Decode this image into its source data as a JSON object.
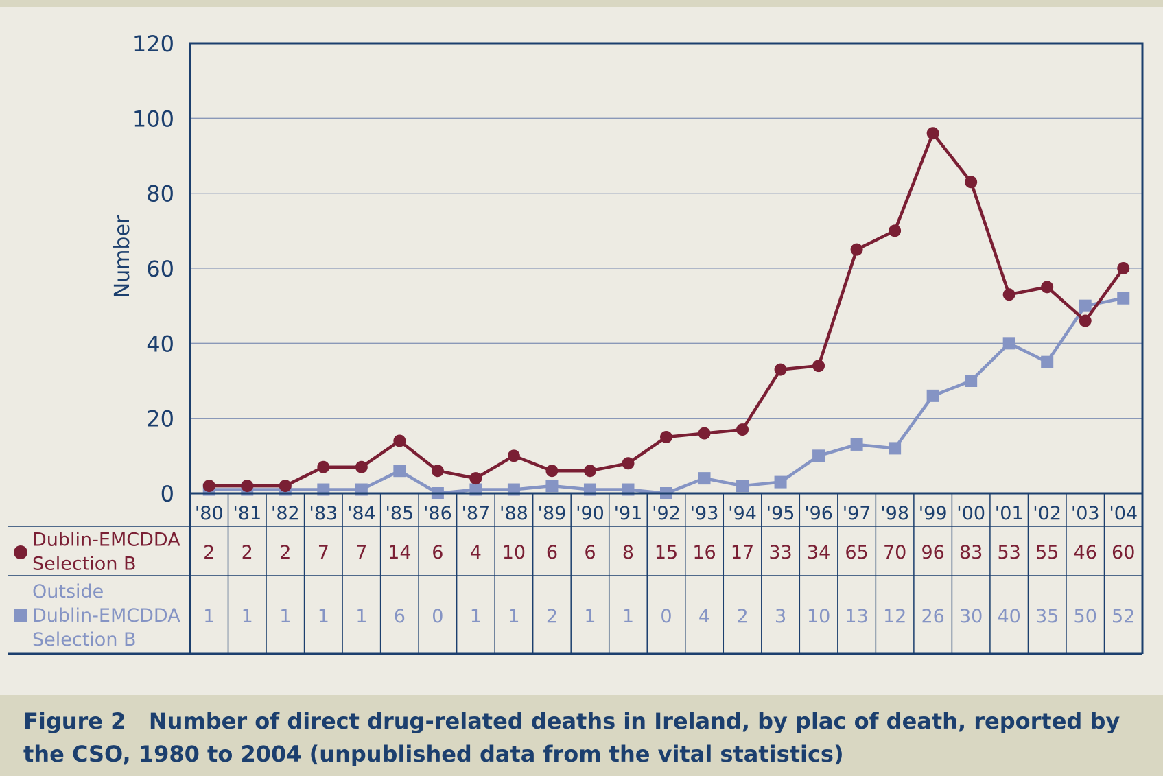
{
  "figure": {
    "label": "Figure 2",
    "caption": "Number of direct drug-related deaths in Ireland, by plac of death, reported by the CSO, 1980 to 2004 (unpublished data from the vital statistics)"
  },
  "colors": {
    "background": "#edebe3",
    "caption_band": "#d9d7c2",
    "axis_text": "#1c3f6e",
    "frame": "#1c3f6e",
    "gridline": "#8a98b8",
    "dublin": "#7a1f34",
    "outside": "#8594c4"
  },
  "chart_data": {
    "type": "line",
    "ylabel": "Number",
    "ylim": [
      0,
      120
    ],
    "yticks": [
      0,
      20,
      40,
      60,
      80,
      100,
      120
    ],
    "grid": true,
    "categories": [
      "'80",
      "'81",
      "'82",
      "'83",
      "'84",
      "'85",
      "'86",
      "'87",
      "'88",
      "'89",
      "'90",
      "'91",
      "'92",
      "'93",
      "'94",
      "'95",
      "'96",
      "'97",
      "'98",
      "'99",
      "'00",
      "'01",
      "'02",
      "'03",
      "'04"
    ],
    "series": [
      {
        "name": "Dublin-EMCDDA Selection B",
        "name_lines": [
          "Dublin-EMCDDA",
          "Selection B"
        ],
        "marker": "circle",
        "values": [
          2,
          2,
          2,
          7,
          7,
          14,
          6,
          4,
          10,
          6,
          6,
          8,
          15,
          16,
          17,
          33,
          34,
          65,
          70,
          96,
          83,
          53,
          55,
          46,
          60
        ]
      },
      {
        "name": "Outside Dublin-EMCDDA Selection B",
        "name_lines": [
          "Outside",
          "Dublin-EMCDDA",
          "Selection B"
        ],
        "marker": "square",
        "values": [
          1,
          1,
          1,
          1,
          1,
          6,
          0,
          1,
          1,
          2,
          1,
          1,
          0,
          4,
          2,
          3,
          10,
          13,
          12,
          26,
          30,
          40,
          35,
          50,
          52
        ]
      }
    ]
  }
}
